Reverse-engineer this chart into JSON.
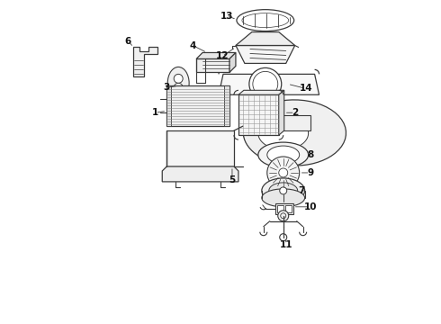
{
  "bg_color": "#ffffff",
  "line_color": "#3a3a3a",
  "label_color": "#111111",
  "fig_width": 4.9,
  "fig_height": 3.6,
  "dpi": 100
}
